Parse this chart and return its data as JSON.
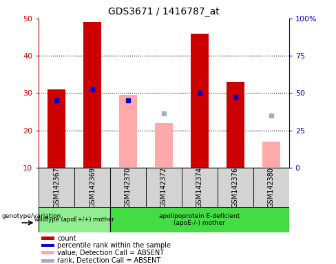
{
  "title": "GDS3671 / 1416787_at",
  "samples": [
    "GSM142367",
    "GSM142369",
    "GSM142370",
    "GSM142372",
    "GSM142374",
    "GSM142376",
    "GSM142380"
  ],
  "count_values": [
    31.0,
    49.0,
    null,
    null,
    46.0,
    33.0,
    null
  ],
  "count_absent_values": [
    null,
    null,
    29.5,
    22.0,
    null,
    null,
    17.0
  ],
  "rank_values_left": [
    28.0,
    31.0,
    28.0,
    null,
    30.0,
    29.0,
    null
  ],
  "rank_absent_values_left": [
    null,
    null,
    null,
    24.5,
    null,
    null,
    24.0
  ],
  "ylim_left": [
    10,
    50
  ],
  "ylim_right": [
    0,
    100
  ],
  "yticks_left": [
    10,
    20,
    30,
    40,
    50
  ],
  "yticks_right": [
    0,
    25,
    50,
    75,
    100
  ],
  "bar_color_present": "#cc0000",
  "bar_color_absent": "#ffaaaa",
  "rank_color_present": "#0000cc",
  "rank_color_absent": "#aaaacc",
  "bar_width": 0.5,
  "rank_marker_size": 5,
  "genotype_label": "genotype/variation",
  "wildtype_label": "wildtype (apoE+/+) mother",
  "apoe_label": "apolipoprotein E-deficient\n(apoE-/-) mother",
  "wildtype_color": "#90ee90",
  "apoe_color": "#44dd44",
  "legend_items": [
    {
      "color": "#cc0000",
      "label": "count"
    },
    {
      "color": "#0000cc",
      "label": "percentile rank within the sample"
    },
    {
      "color": "#ffaaaa",
      "label": "value, Detection Call = ABSENT"
    },
    {
      "color": "#aaaacc",
      "label": "rank, Detection Call = ABSENT"
    }
  ],
  "fig_width": 4.88,
  "fig_height": 3.84
}
